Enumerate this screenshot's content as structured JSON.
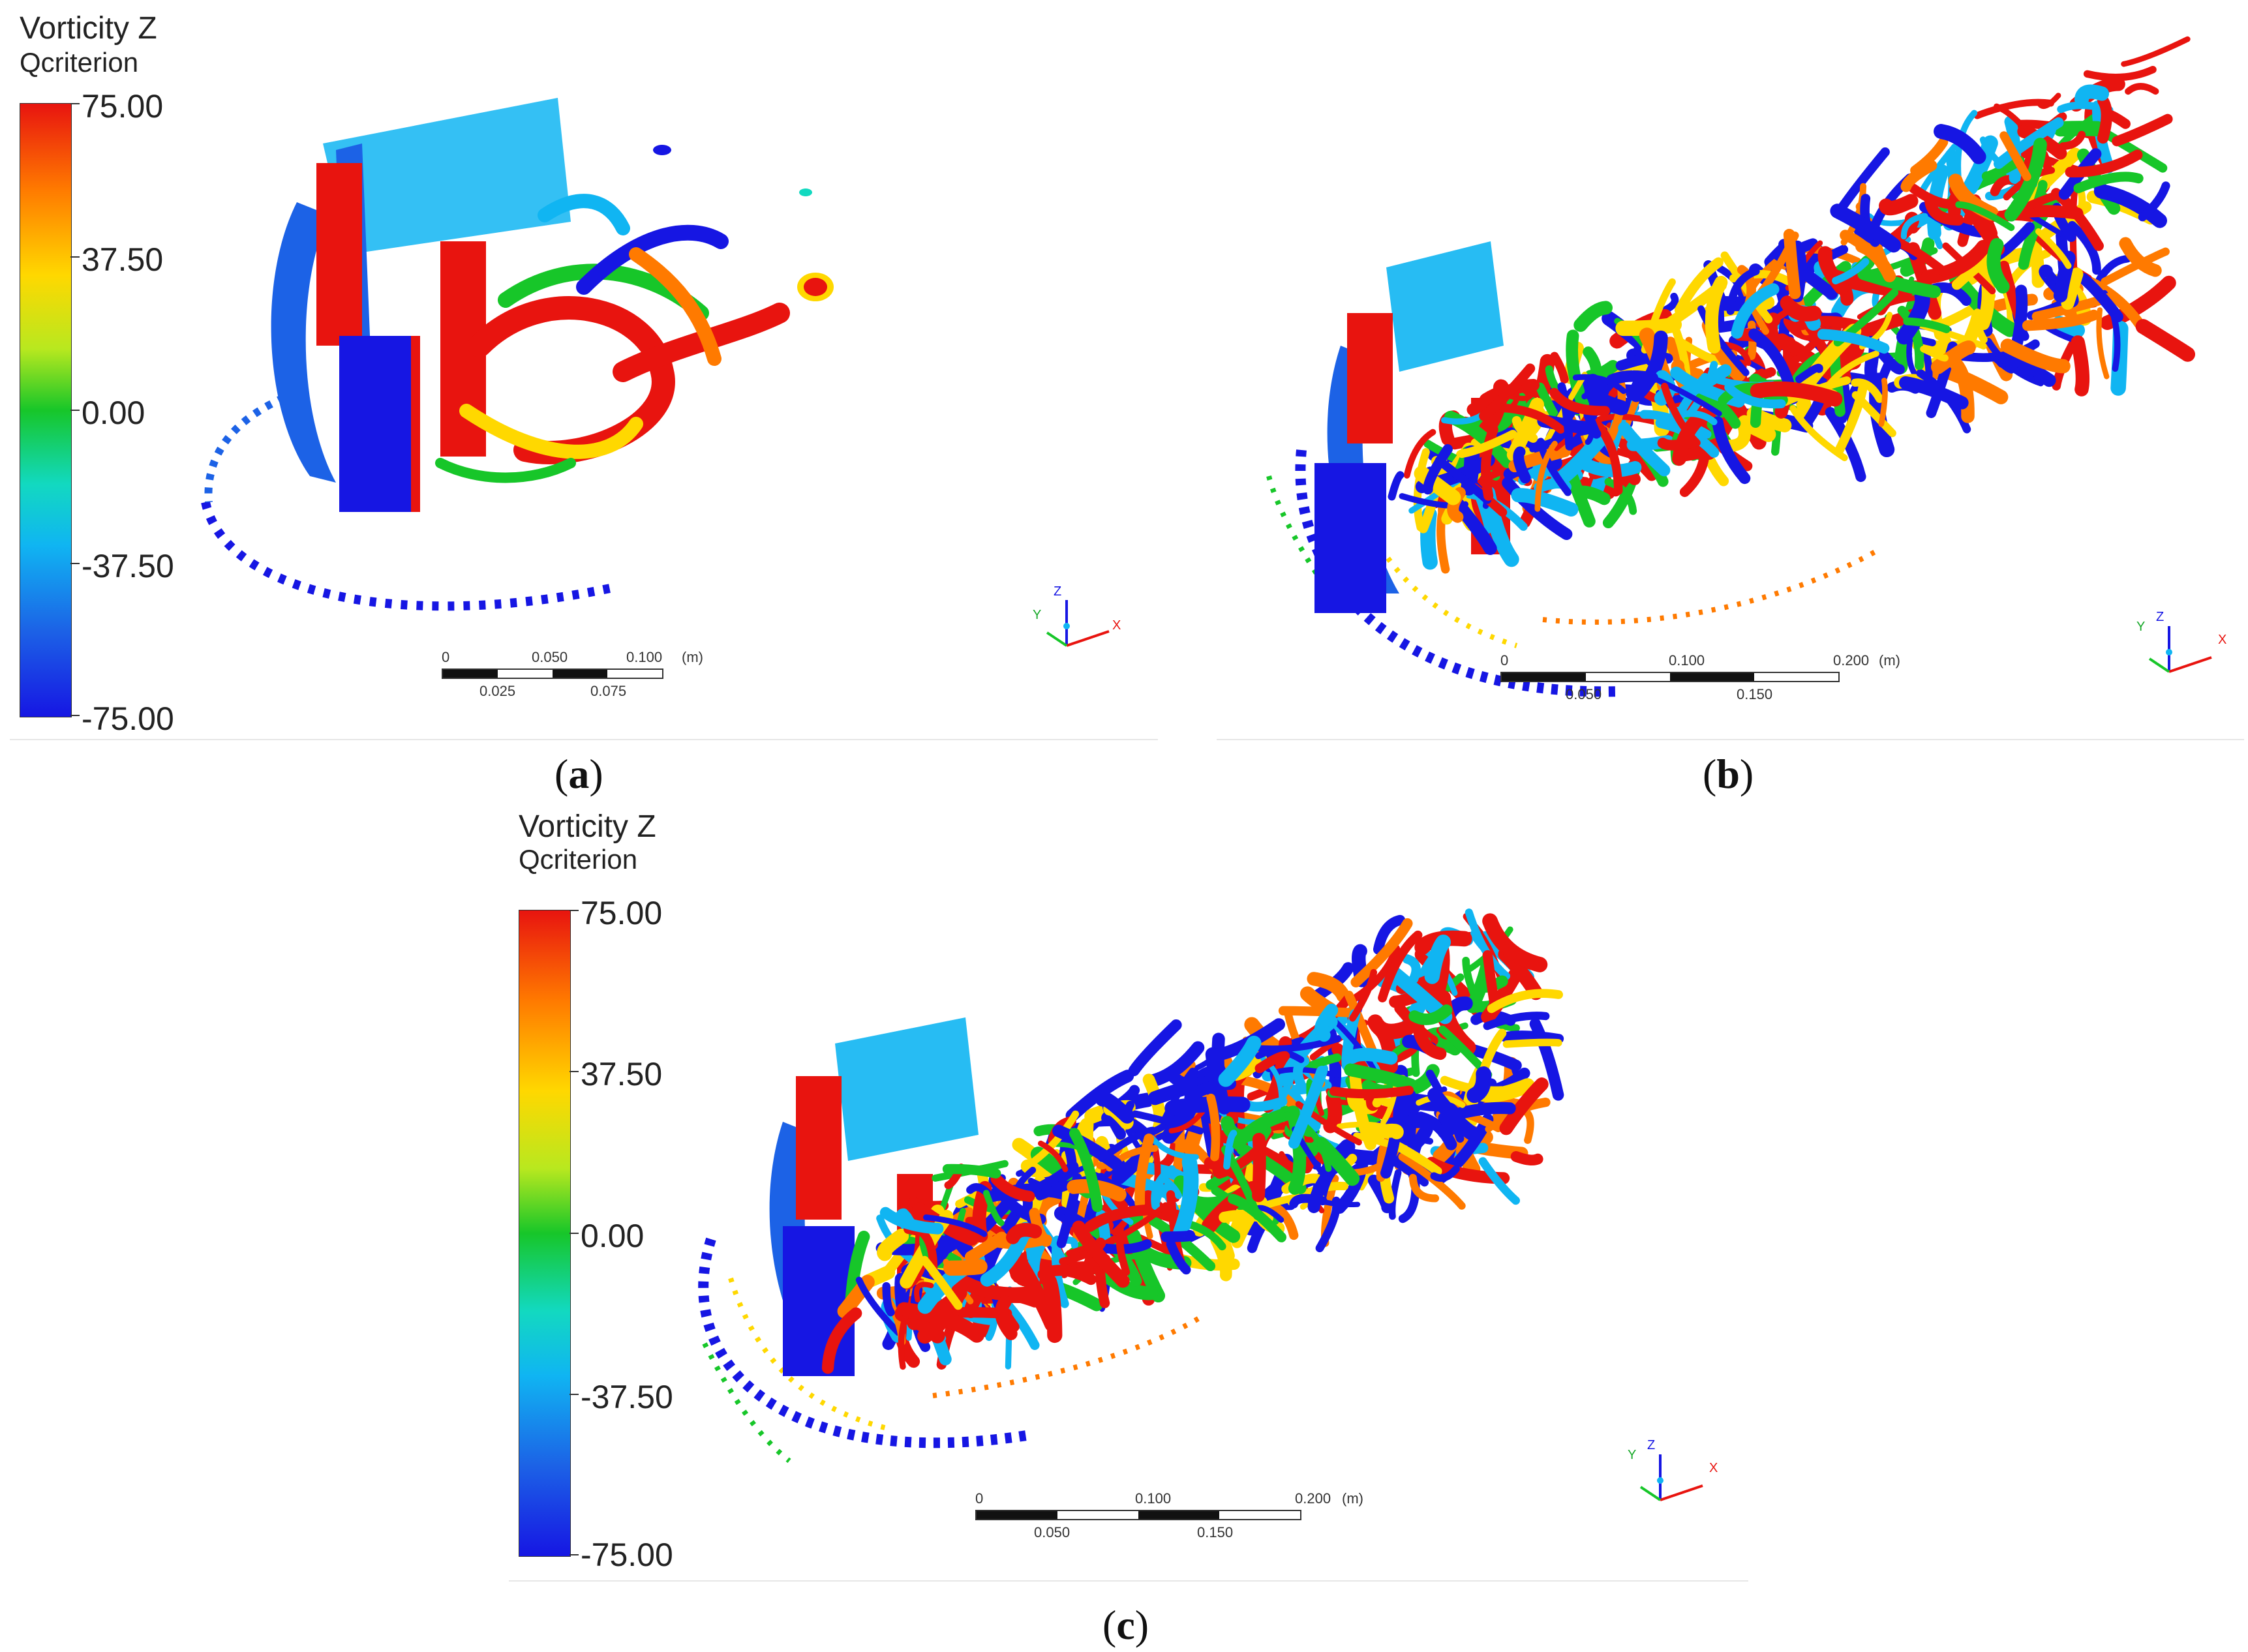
{
  "colors": {
    "vortex_red": "#e8140f",
    "vortex_blue": "#1616e3",
    "vortex_cyan": "#10b5f2",
    "vortex_green": "#17c629",
    "vortex_yellow": "#ffd800",
    "vortex_orange": "#ff7a00"
  },
  "panel_a": {
    "legend_title": "Vorticity Z",
    "legend_sub": "Qcriterion",
    "ticks": [
      "75.00",
      "37.50",
      "0.00",
      "-37.50",
      "-75.00"
    ],
    "scale_top": [
      "0",
      "0.050",
      "0.100"
    ],
    "scale_unit": "(m)",
    "scale_bottom": [
      "0.025",
      "0.075"
    ],
    "axes": [
      "Y",
      "Z",
      "X"
    ],
    "caption_open": "(",
    "caption_letter": "a",
    "caption_close": ")"
  },
  "panel_b": {
    "scale_top": [
      "0",
      "0.100",
      "0.200"
    ],
    "scale_unit": "(m)",
    "scale_bottom": [
      "0.050",
      "0.150"
    ],
    "axes": [
      "Y",
      "Z",
      "X"
    ],
    "caption_open": "(",
    "caption_letter": "b",
    "caption_close": ")"
  },
  "panel_c": {
    "legend_title": "Vorticity Z",
    "legend_sub": "Qcriterion",
    "ticks": [
      "75.00",
      "37.50",
      "0.00",
      "-37.50",
      "-75.00"
    ],
    "scale_top": [
      "0",
      "0.100",
      "0.200"
    ],
    "scale_unit": "(m)",
    "scale_bottom": [
      "0.050",
      "0.150"
    ],
    "axes": [
      "Y",
      "Z",
      "X"
    ],
    "caption_open": "(",
    "caption_letter": "c",
    "caption_close": ")"
  }
}
